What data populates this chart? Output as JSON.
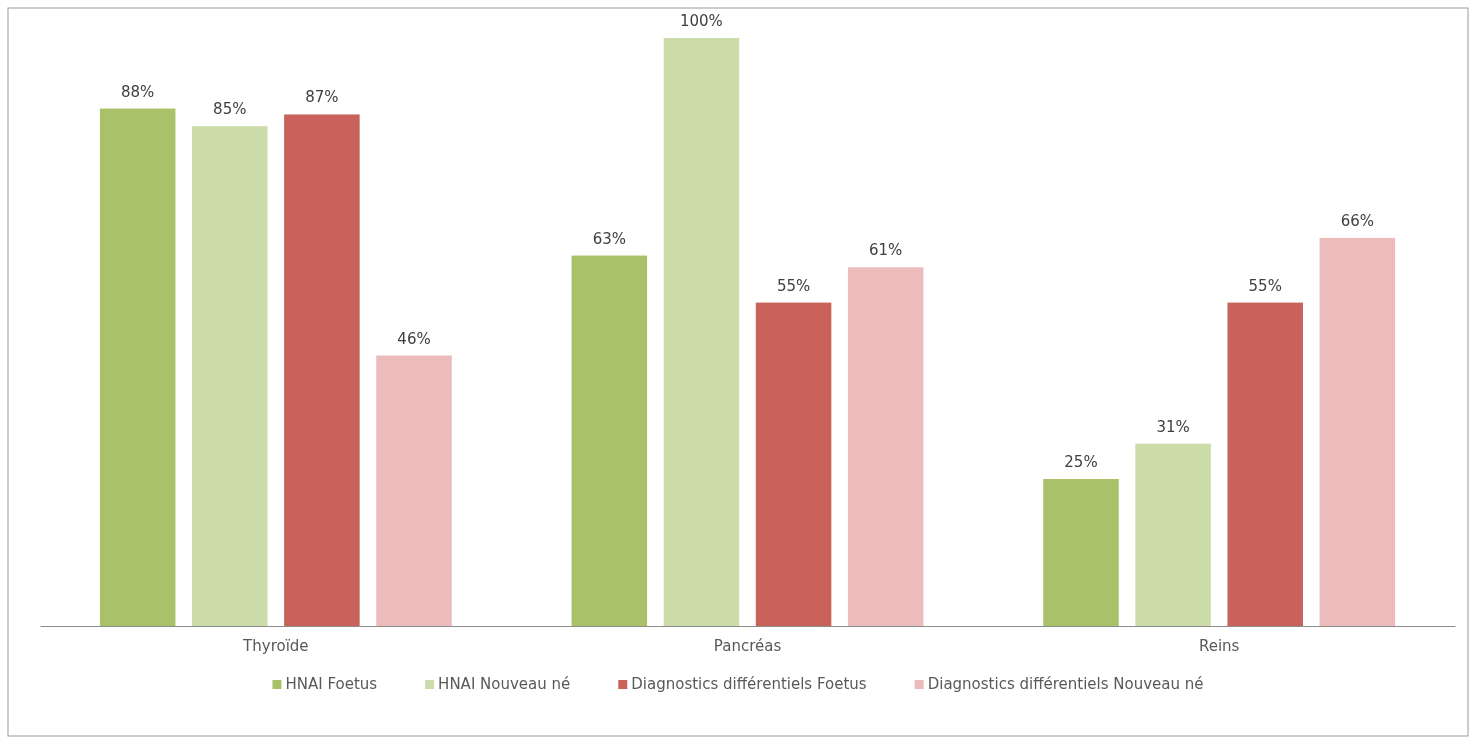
{
  "chart_data": {
    "type": "bar",
    "categories": [
      "Thyroïde",
      "Pancréas",
      "Reins"
    ],
    "series": [
      {
        "name": "HNAI Foetus",
        "color": "#a9c26a",
        "values": [
          88,
          63,
          25
        ],
        "value_labels": [
          "88%",
          "63%",
          "25%"
        ]
      },
      {
        "name": "HNAI Nouveau né",
        "color": "#ccdcaa",
        "values": [
          85,
          100,
          31
        ],
        "value_labels": [
          "85%",
          "100%",
          "31%"
        ]
      },
      {
        "name": "Diagnostics différentiels Foetus",
        "color": "#c9625a",
        "values": [
          87,
          55,
          55
        ],
        "value_labels": [
          "87%",
          "55%",
          "55%"
        ]
      },
      {
        "name": "Diagnostics différentiels Nouveau né",
        "color": "#ebbcbb",
        "values": [
          46,
          61,
          66
        ],
        "value_labels": [
          "46%",
          "61%",
          "66%"
        ]
      }
    ],
    "grid": false,
    "legend": "bottom"
  }
}
